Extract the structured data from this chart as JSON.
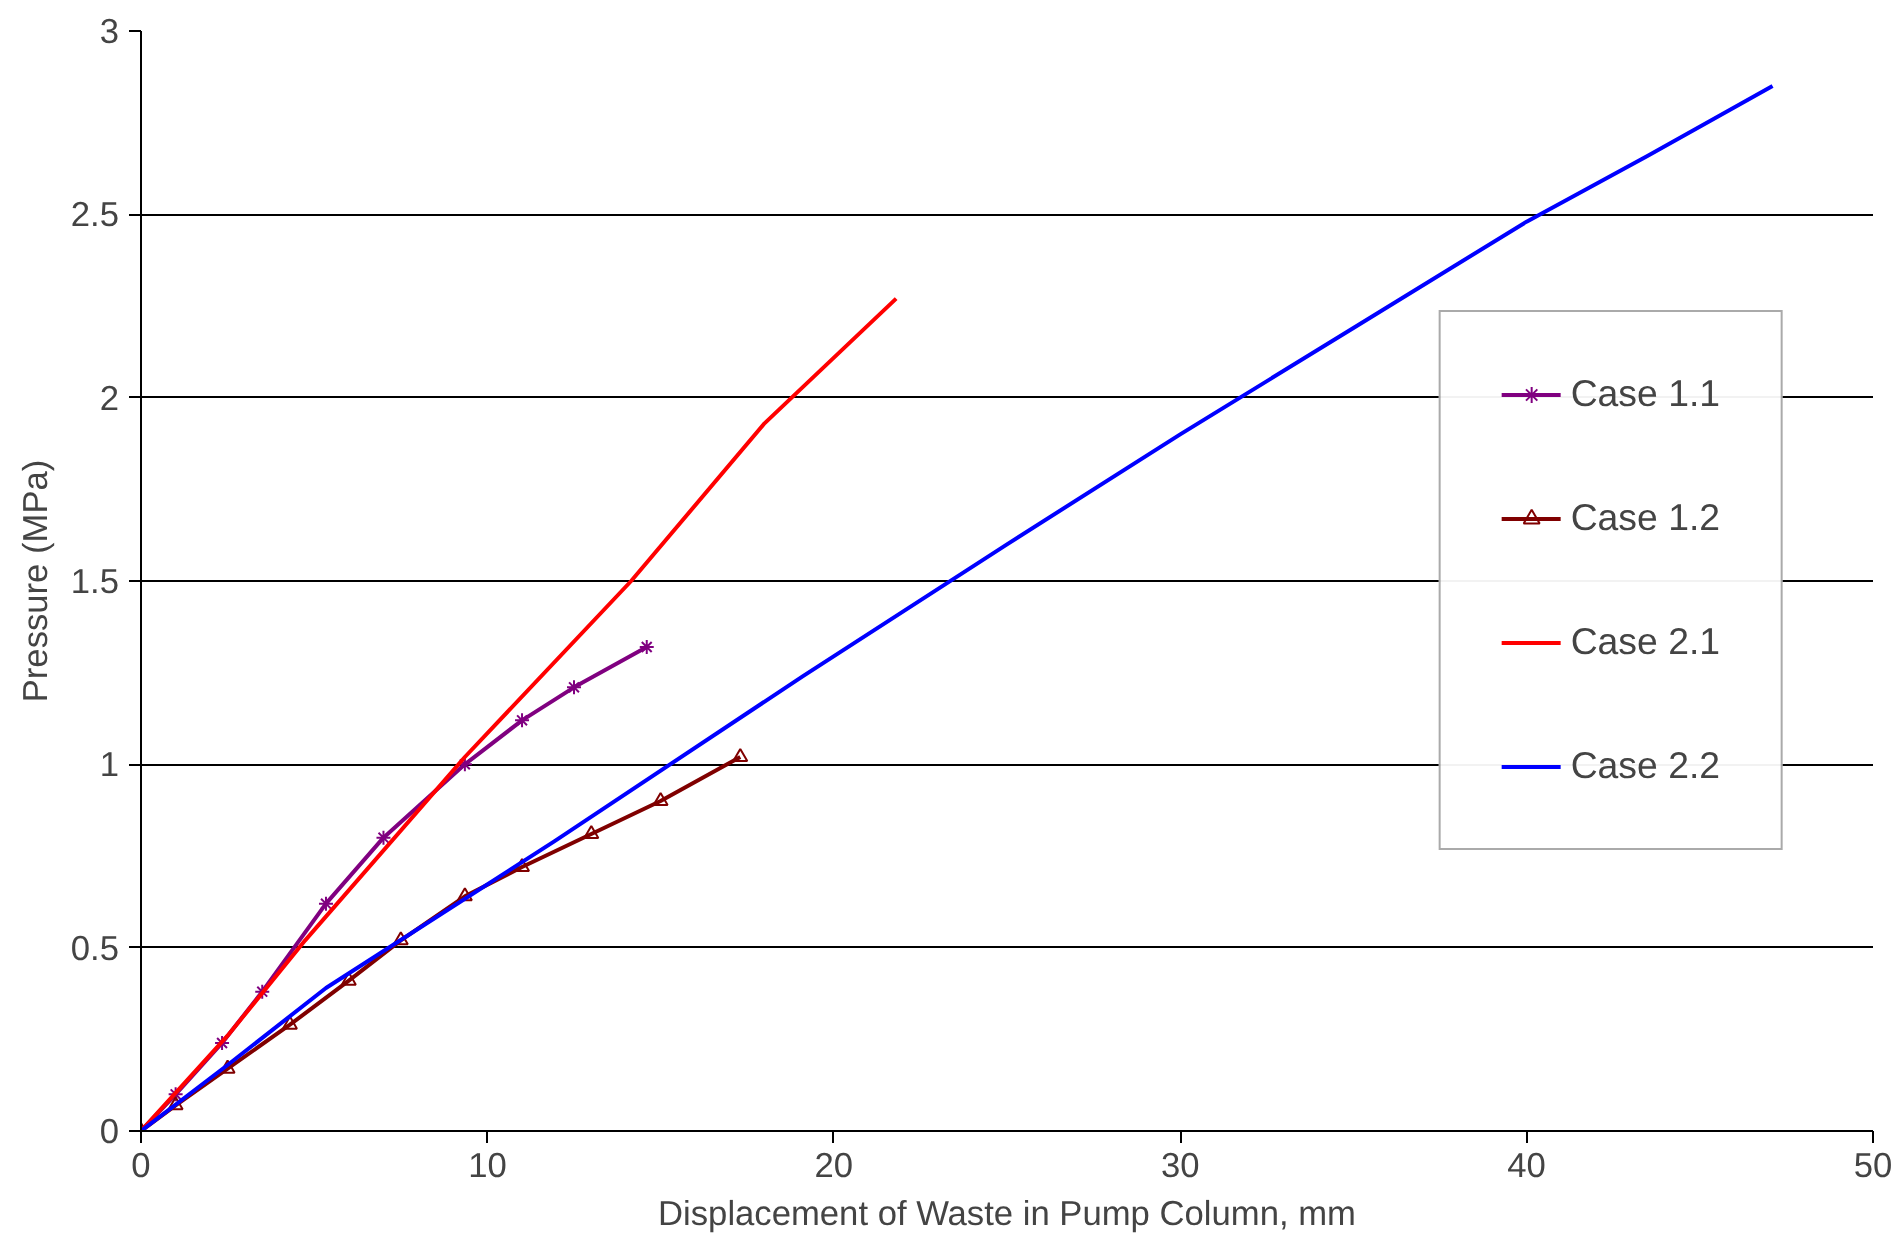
{
  "chart_data": {
    "type": "line",
    "xlabel": "Displacement of Waste in Pump Column, mm",
    "ylabel": "Pressure (MPa)",
    "xlim": [
      0,
      50
    ],
    "xticks": [
      0,
      10,
      20,
      30,
      40,
      50
    ],
    "ylim": [
      0,
      3
    ],
    "yticks": [
      0,
      0.5,
      1,
      1.5,
      2,
      2.5,
      3
    ],
    "grid": "y",
    "legend": "right",
    "series": [
      {
        "name": "Case 1.1",
        "color": "#800080",
        "marker": "cross",
        "x": [
          0,
          1,
          2.34,
          3.5,
          5.34,
          7,
          9.35,
          11,
          12.5,
          14.6
        ],
        "values": [
          0,
          0.1,
          0.24,
          0.38,
          0.62,
          0.8,
          1.0,
          1.12,
          1.21,
          1.32
        ]
      },
      {
        "name": "Case 1.2",
        "color": "#800000",
        "marker": "triangle",
        "x": [
          0,
          1,
          2.5,
          4.3,
          6,
          7.5,
          9.35,
          11,
          13,
          15,
          17.3
        ],
        "values": [
          0,
          0.07,
          0.17,
          0.29,
          0.41,
          0.52,
          0.64,
          0.72,
          0.81,
          0.9,
          1.02
        ]
      },
      {
        "name": "Case 2.1",
        "color": "#ff0000",
        "marker": "none",
        "x": [
          0,
          2.5,
          4.74,
          9.35,
          14.15,
          18,
          21.8
        ],
        "values": [
          0,
          0.26,
          0.52,
          1.02,
          1.5,
          1.93,
          2.27
        ]
      },
      {
        "name": "Case 2.2",
        "color": "#0000ff",
        "marker": "none",
        "x": [
          0,
          2.5,
          5.34,
          11.93,
          19.1,
          25,
          30,
          35,
          40,
          43.5,
          47.1
        ],
        "values": [
          0,
          0.18,
          0.39,
          0.79,
          1.24,
          1.6,
          1.9,
          2.19,
          2.48,
          2.66,
          2.85
        ]
      }
    ]
  }
}
